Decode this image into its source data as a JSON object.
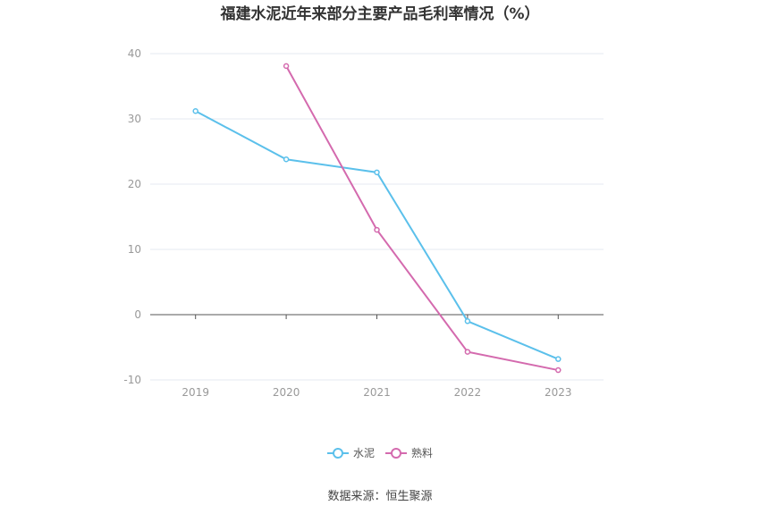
{
  "chart_data": {
    "type": "line",
    "title": "福建水泥近年来部分主要产品毛利率情况（%）",
    "categories": [
      "2019",
      "2020",
      "2021",
      "2022",
      "2023"
    ],
    "ylim": [
      -10,
      40
    ],
    "yticks": [
      "-10",
      "0",
      "10",
      "20",
      "30",
      "40"
    ],
    "grid": true,
    "legend_position": "bottom-center",
    "series": [
      {
        "name": "水泥",
        "color": "#5bc0eb",
        "values": [
          31.2,
          23.8,
          21.8,
          -1.0,
          -6.8
        ]
      },
      {
        "name": "熟料",
        "color": "#d46aae",
        "values": [
          null,
          38.1,
          13.0,
          -5.7,
          -8.5
        ]
      }
    ]
  },
  "footer": {
    "source": "数据来源：恒生聚源"
  }
}
